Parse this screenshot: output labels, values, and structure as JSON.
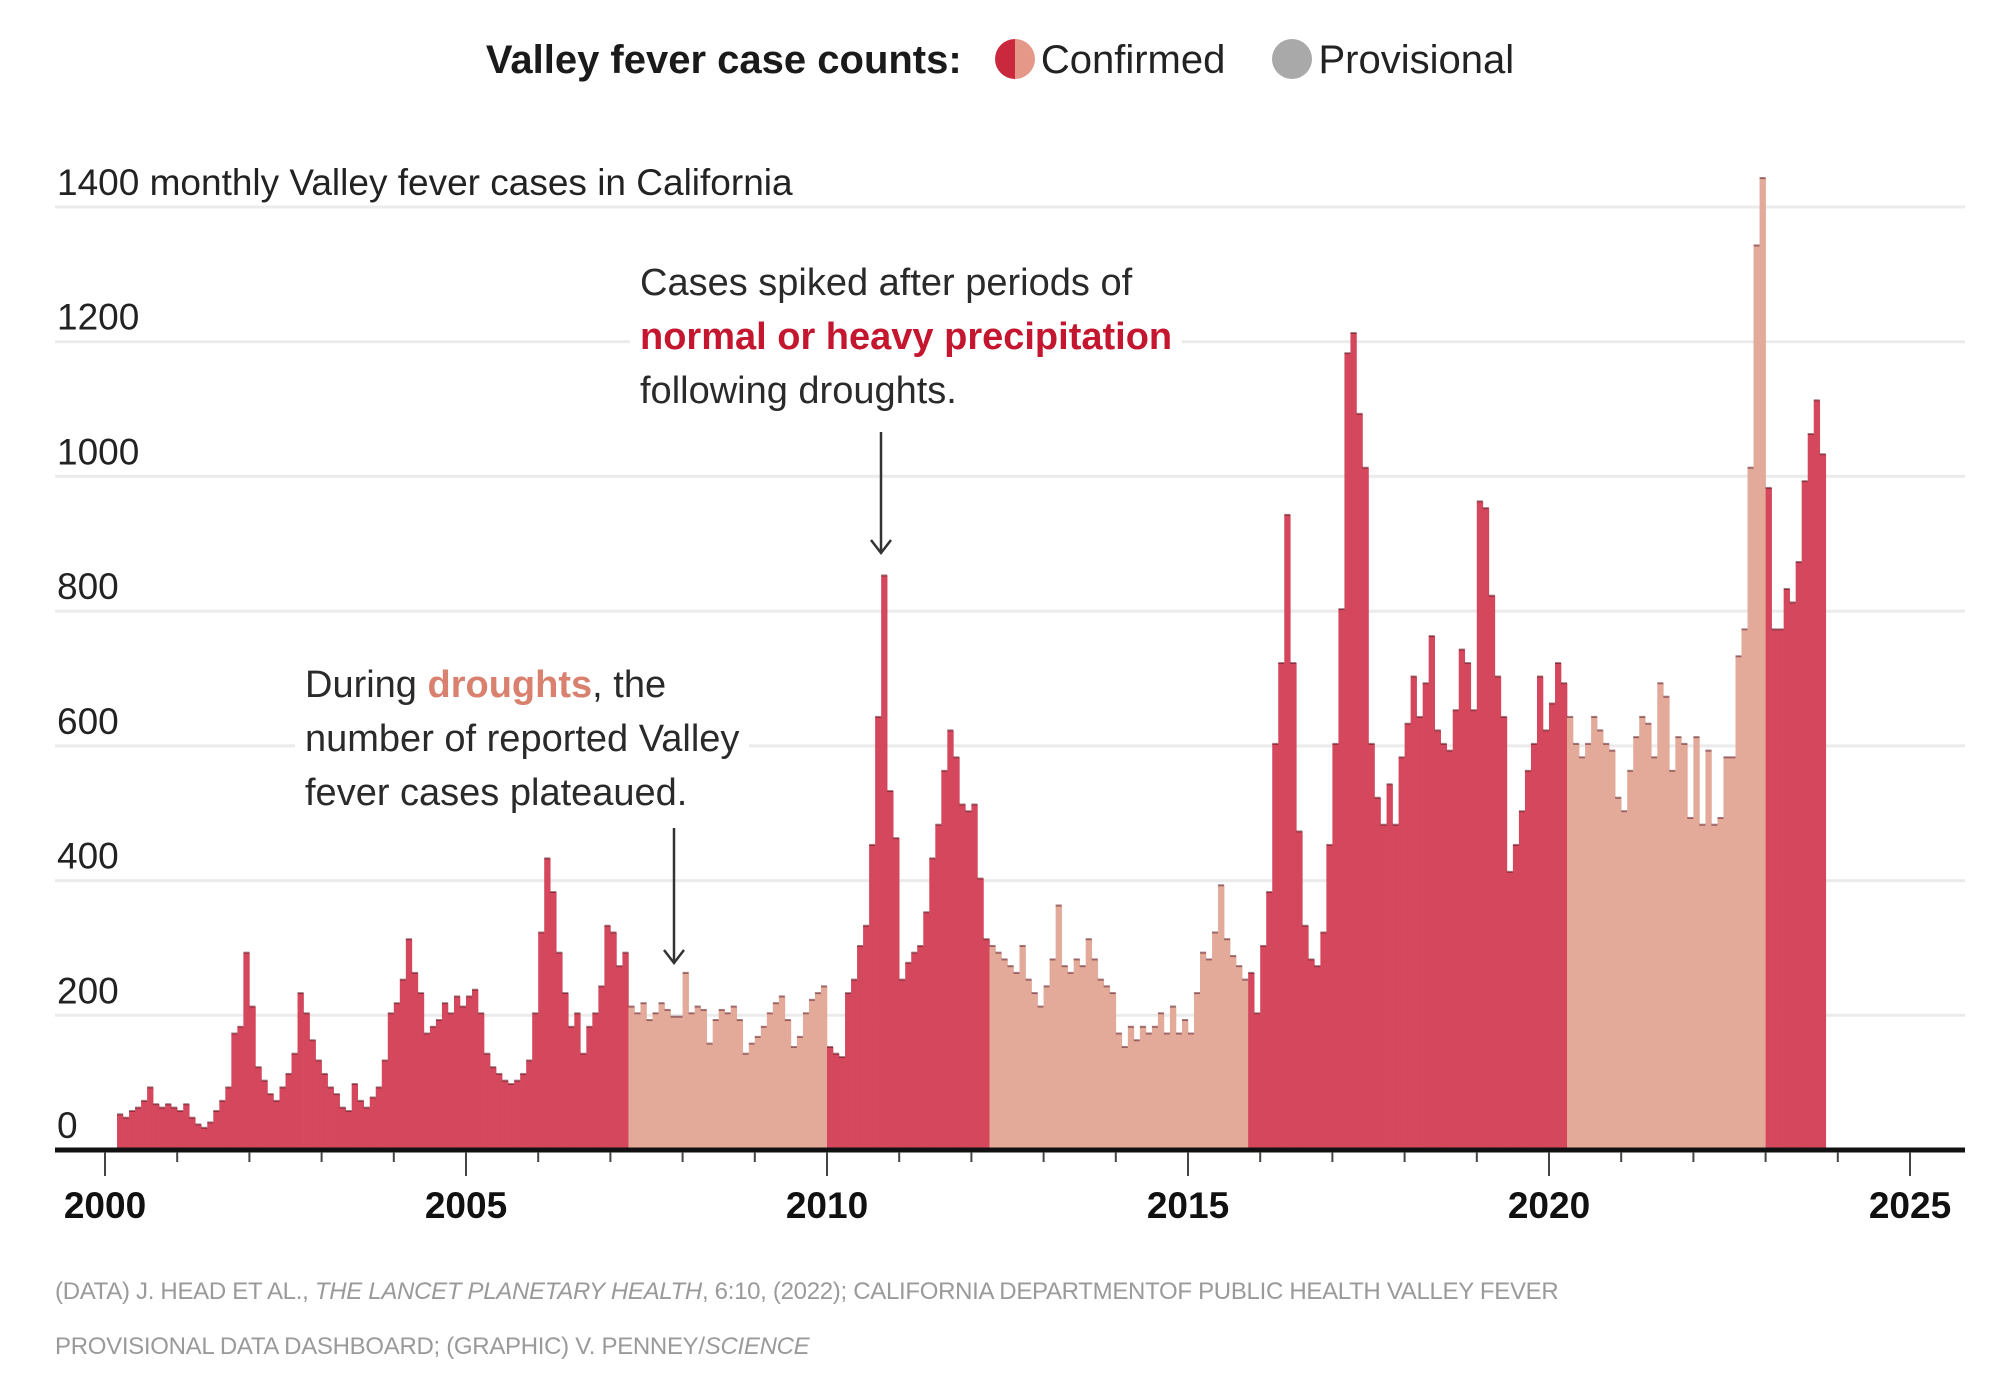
{
  "legend": {
    "title": "Valley fever case counts:",
    "confirmed_label": "Confirmed",
    "provisional_label": "Provisional"
  },
  "annotations": {
    "spike": {
      "line1": "Cases spiked after periods of",
      "highlight": "normal or heavy precipitation",
      "line3": "following droughts."
    },
    "drought": {
      "prefix": "During ",
      "highlight": "droughts",
      "suffix": ", the",
      "line2": "number of reported Valley",
      "line3": "fever cases plateaued."
    }
  },
  "source": {
    "part1": "(DATA) J. HEAD ET AL., ",
    "journal": "THE LANCET PLANETARY HEALTH",
    "part2": ", 6:10, (2022); CALIFORNIA DEPARTMENTOF PUBLIC HEALTH VALLEY FEVER",
    "part3": "PROVISIONAL DATA DASHBOARD; (GRAPHIC) V. PENNEY/",
    "publisher": "SCIENCE"
  },
  "colors": {
    "confirmed": "#d4475d",
    "drought": "#e3a999",
    "provisional": "#bdbebf",
    "highlight_red": "#c4162e",
    "highlight_salmon": "#d9806e"
  },
  "chart_data": {
    "type": "bar",
    "title": "Valley fever case counts",
    "ylabel": "monthly Valley fever cases in California",
    "ytick_top_label": "1400 monthly Valley fever cases in California",
    "yticks": [
      0,
      200,
      400,
      600,
      800,
      1000,
      1200,
      1400
    ],
    "ylim": [
      0,
      1400
    ],
    "xticks": [
      2000,
      2005,
      2010,
      2015,
      2020,
      2025
    ],
    "xlim": [
      2000,
      2025.7
    ],
    "grid": true,
    "legend_position": "top-center",
    "start": "2000-03",
    "drought_periods": [
      [
        2007.17,
        2009.92
      ],
      [
        2012.25,
        2015.83
      ],
      [
        2020.17,
        2022.92
      ]
    ],
    "provisional_from": 2024.0,
    "series": [
      {
        "name": "Monthly cases",
        "values": [
          50,
          45,
          55,
          60,
          70,
          90,
          65,
          60,
          65,
          60,
          55,
          65,
          45,
          35,
          30,
          38,
          55,
          70,
          90,
          170,
          180,
          290,
          210,
          120,
          100,
          80,
          70,
          90,
          110,
          140,
          230,
          200,
          160,
          130,
          110,
          90,
          80,
          60,
          55,
          95,
          70,
          60,
          75,
          90,
          130,
          200,
          215,
          250,
          310,
          260,
          230,
          170,
          180,
          190,
          215,
          200,
          225,
          210,
          225,
          235,
          200,
          140,
          120,
          110,
          100,
          95,
          100,
          110,
          130,
          200,
          320,
          430,
          380,
          290,
          230,
          180,
          200,
          140,
          180,
          200,
          240,
          330,
          320,
          270,
          290,
          210,
          200,
          215,
          190,
          200,
          215,
          205,
          195,
          195,
          260,
          200,
          210,
          205,
          155,
          190,
          205,
          200,
          210,
          190,
          140,
          155,
          165,
          180,
          200,
          215,
          225,
          190,
          150,
          165,
          200,
          220,
          230,
          240,
          150,
          140,
          135,
          230,
          250,
          300,
          330,
          450,
          640,
          850,
          530,
          460,
          250,
          275,
          290,
          300,
          350,
          430,
          480,
          560,
          620,
          580,
          510,
          500,
          510,
          400,
          310,
          300,
          290,
          280,
          270,
          260,
          300,
          250,
          230,
          210,
          240,
          280,
          360,
          270,
          260,
          280,
          270,
          310,
          280,
          250,
          240,
          230,
          170,
          150,
          180,
          160,
          180,
          170,
          180,
          200,
          170,
          210,
          170,
          190,
          170,
          230,
          290,
          280,
          320,
          390,
          310,
          285,
          270,
          250,
          260,
          200,
          300,
          380,
          600,
          720,
          940,
          720,
          470,
          330,
          280,
          270,
          320,
          450,
          600,
          800,
          1180,
          1210,
          1090,
          1010,
          600,
          520,
          480,
          540,
          480,
          580,
          630,
          700,
          640,
          690,
          760,
          620,
          600,
          590,
          650,
          740,
          720,
          650,
          960,
          950,
          820,
          700,
          640,
          410,
          450,
          500,
          560,
          600,
          700,
          620,
          660,
          720,
          690,
          640,
          600,
          580,
          600,
          640,
          620,
          600,
          590,
          520,
          500,
          560,
          610,
          640,
          630,
          580,
          690,
          670,
          560,
          610,
          600,
          490,
          610,
          480,
          590,
          480,
          490,
          580,
          580,
          730,
          770,
          1010,
          1340,
          1440,
          980,
          770,
          770,
          830,
          810,
          870,
          990,
          1060,
          1110,
          1030
        ]
      }
    ]
  }
}
